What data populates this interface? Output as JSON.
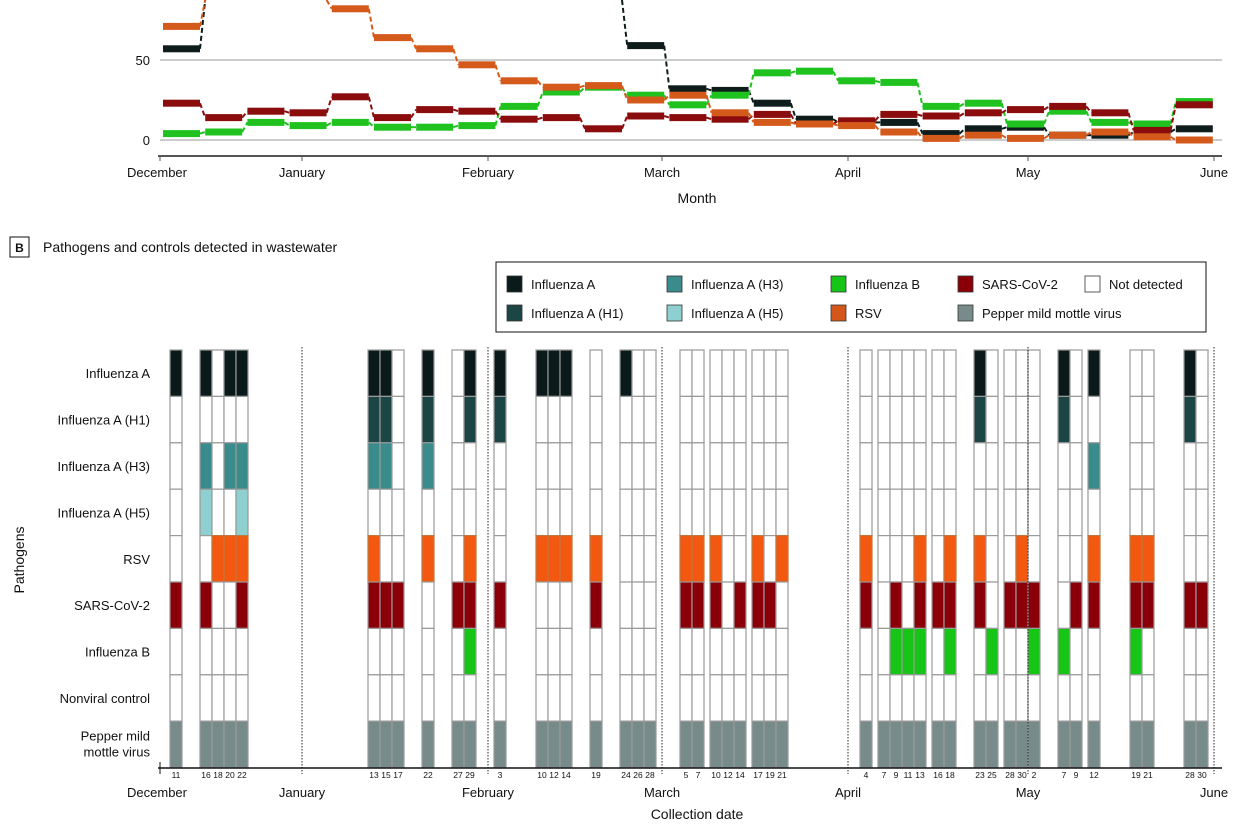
{
  "chart_data": [
    {
      "type": "line",
      "panel": "A",
      "xlabel": "Month",
      "ylabel": "",
      "x_ticks": [
        "December",
        "January",
        "February",
        "March",
        "April",
        "May",
        "June"
      ],
      "y_ticks": [
        "50",
        "0"
      ],
      "ylim": [
        -10,
        87
      ],
      "x_unit": "week (weekly step segments, starting mid-December)",
      "weeks": 25,
      "note": "null = value above visible plot area (cropped)",
      "series": [
        {
          "name": "Influenza A",
          "color": "#0e1c1c",
          "values": [
            57,
            null,
            null,
            null,
            null,
            null,
            null,
            null,
            null,
            null,
            null,
            59,
            32,
            31,
            23,
            13,
            11,
            11,
            4,
            7,
            8,
            3,
            3,
            5,
            7
          ]
        },
        {
          "name": "Influenza B",
          "color": "#1fc21f",
          "values": [
            4,
            5,
            11,
            9,
            11,
            8,
            8,
            9,
            21,
            30,
            33,
            28,
            22,
            28,
            42,
            43,
            37,
            36,
            21,
            23,
            10,
            18,
            11,
            10,
            24
          ]
        },
        {
          "name": "SARS-CoV-2",
          "color": "#8a0c0c",
          "values": [
            23,
            14,
            18,
            17,
            27,
            14,
            19,
            18,
            13,
            14,
            7,
            15,
            14,
            13,
            16,
            10,
            12,
            16,
            15,
            17,
            19,
            21,
            17,
            6,
            22
          ]
        },
        {
          "name": "RSV",
          "color": "#d45a1c",
          "values": [
            71,
            null,
            null,
            null,
            82,
            64,
            57,
            47,
            37,
            33,
            34,
            25,
            28,
            17,
            11,
            10,
            9,
            5,
            1,
            3,
            1,
            3,
            5,
            2,
            0
          ]
        }
      ]
    },
    {
      "type": "heatmap",
      "panel": "B",
      "panel_label": "B",
      "title": "Pathogens and controls detected in wastewater",
      "xlabel": "Collection date",
      "ylabel": "Pathogens",
      "month_labels": [
        "December",
        "January",
        "February",
        "March",
        "April",
        "May",
        "June"
      ],
      "rows": [
        "Influenza A",
        "Influenza A (H1)",
        "Influenza A (H3)",
        "Influenza A (H5)",
        "RSV",
        "SARS-CoV-2",
        "Influenza B",
        "Nonviral control",
        "Pepper mild mottle virus"
      ],
      "row_colors": [
        "#0a1a1a",
        "#1c4646",
        "#3a8b8c",
        "#8ecfcf",
        "#f2580f",
        "#8b0008",
        "#16c516",
        "#ffffff",
        "#788b8b"
      ],
      "legend": [
        {
          "label": "Influenza A",
          "color": "#0a1a1a"
        },
        {
          "label": "Influenza A (H1)",
          "color": "#1c4646"
        },
        {
          "label": "Influenza A (H3)",
          "color": "#3a8b8c"
        },
        {
          "label": "Influenza A (H5)",
          "color": "#8ecfcf"
        },
        {
          "label": "Influenza B",
          "color": "#16c516"
        },
        {
          "label": "RSV",
          "color": "#d4561a"
        },
        {
          "label": "SARS-CoV-2",
          "color": "#8b0008"
        },
        {
          "label": "Pepper mild mottle virus",
          "color": "#788b8b"
        },
        {
          "label": "Not detected",
          "color": "#ffffff"
        }
      ],
      "columns": [
        {
          "month": "Dec",
          "day": 11,
          "detected": "100001001"
        },
        {
          "month": "Dec",
          "day": 16,
          "detected": "101101001"
        },
        {
          "month": "Dec",
          "day": 18,
          "detected": "000010001"
        },
        {
          "month": "Dec",
          "day": 20,
          "detected": "101010001"
        },
        {
          "month": "Dec",
          "day": 22,
          "detected": "101111001"
        },
        {
          "month": "Jan",
          "day": 13,
          "detected": "111011001"
        },
        {
          "month": "Jan",
          "day": 15,
          "detected": "111001001"
        },
        {
          "month": "Jan",
          "day": 17,
          "detected": "000001001"
        },
        {
          "month": "Jan",
          "day": 22,
          "detected": "111010001"
        },
        {
          "month": "Jan",
          "day": 27,
          "detected": "000001001"
        },
        {
          "month": "Jan",
          "day": 29,
          "detected": "110011101"
        },
        {
          "month": "Feb",
          "day": 3,
          "detected": "110001001"
        },
        {
          "month": "Feb",
          "day": 10,
          "detected": "100010001"
        },
        {
          "month": "Feb",
          "day": 12,
          "detected": "100010001"
        },
        {
          "month": "Feb",
          "day": 14,
          "detected": "100010001"
        },
        {
          "month": "Feb",
          "day": 19,
          "detected": "000011001"
        },
        {
          "month": "Feb",
          "day": 24,
          "detected": "100000001"
        },
        {
          "month": "Feb",
          "day": 26,
          "detected": "000000001"
        },
        {
          "month": "Feb",
          "day": 28,
          "detected": "000000001"
        },
        {
          "month": "Mar",
          "day": 5,
          "detected": "000011001"
        },
        {
          "month": "Mar",
          "day": 7,
          "detected": "000011001"
        },
        {
          "month": "Mar",
          "day": 10,
          "detected": "000011001"
        },
        {
          "month": "Mar",
          "day": 12,
          "detected": "000000001"
        },
        {
          "month": "Mar",
          "day": 14,
          "detected": "000001001"
        },
        {
          "month": "Mar",
          "day": 17,
          "detected": "000011001"
        },
        {
          "month": "Mar",
          "day": 19,
          "detected": "000001001"
        },
        {
          "month": "Mar",
          "day": 21,
          "detected": "000010001"
        },
        {
          "month": "Apr",
          "day": 4,
          "detected": "000011001"
        },
        {
          "month": "Apr",
          "day": 7,
          "detected": "000000001"
        },
        {
          "month": "Apr",
          "day": 9,
          "detected": "000001101"
        },
        {
          "month": "Apr",
          "day": 11,
          "detected": "000000101"
        },
        {
          "month": "Apr",
          "day": 13,
          "detected": "000011101"
        },
        {
          "month": "Apr",
          "day": 16,
          "detected": "000001001"
        },
        {
          "month": "Apr",
          "day": 18,
          "detected": "000011101"
        },
        {
          "month": "Apr",
          "day": 23,
          "detected": "110011001"
        },
        {
          "month": "Apr",
          "day": 25,
          "detected": "000000101"
        },
        {
          "month": "Apr",
          "day": 28,
          "detected": "000001001"
        },
        {
          "month": "Apr",
          "day": 30,
          "detected": "000011001"
        },
        {
          "month": "May",
          "day": 2,
          "detected": "000001101"
        },
        {
          "month": "May",
          "day": 7,
          "detected": "110000101"
        },
        {
          "month": "May",
          "day": 9,
          "detected": "000001001"
        },
        {
          "month": "May",
          "day": 12,
          "detected": "101011001"
        },
        {
          "month": "May",
          "day": 19,
          "detected": "000011101"
        },
        {
          "month": "May",
          "day": 21,
          "detected": "000011001"
        },
        {
          "month": "May",
          "day": 28,
          "detected": "110001001"
        },
        {
          "month": "May",
          "day": 30,
          "detected": "000001001"
        }
      ]
    }
  ]
}
